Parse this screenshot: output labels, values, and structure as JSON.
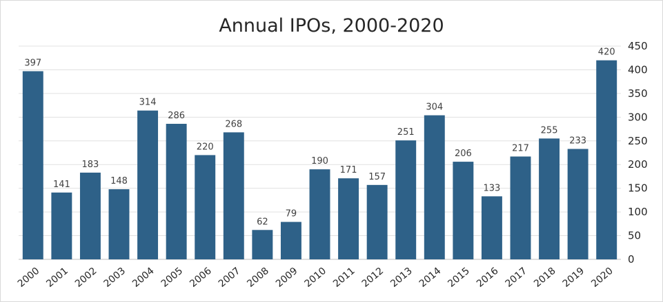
{
  "chart_data": {
    "type": "bar",
    "title": "Annual IPOs, 2000-2020",
    "xlabel": "",
    "ylabel": "",
    "categories": [
      "2000",
      "2001",
      "2002",
      "2003",
      "2004",
      "2005",
      "2006",
      "2007",
      "2008",
      "2009",
      "2010",
      "2011",
      "2012",
      "2013",
      "2014",
      "2015",
      "2016",
      "2017",
      "2018",
      "2019",
      "2020"
    ],
    "values": [
      397,
      141,
      183,
      148,
      314,
      286,
      220,
      268,
      62,
      79,
      190,
      171,
      157,
      251,
      304,
      206,
      133,
      217,
      255,
      233,
      420
    ],
    "ylim": [
      0,
      450
    ],
    "yticks": [
      0,
      50,
      100,
      150,
      200,
      250,
      300,
      350,
      400,
      450
    ],
    "y_axis_position": "right",
    "grid": true,
    "legend": "none",
    "data_labels": true,
    "bar_color": "#2e6188",
    "grid_color": "#e0e0e0",
    "axis_color": "#bfbfbf"
  }
}
